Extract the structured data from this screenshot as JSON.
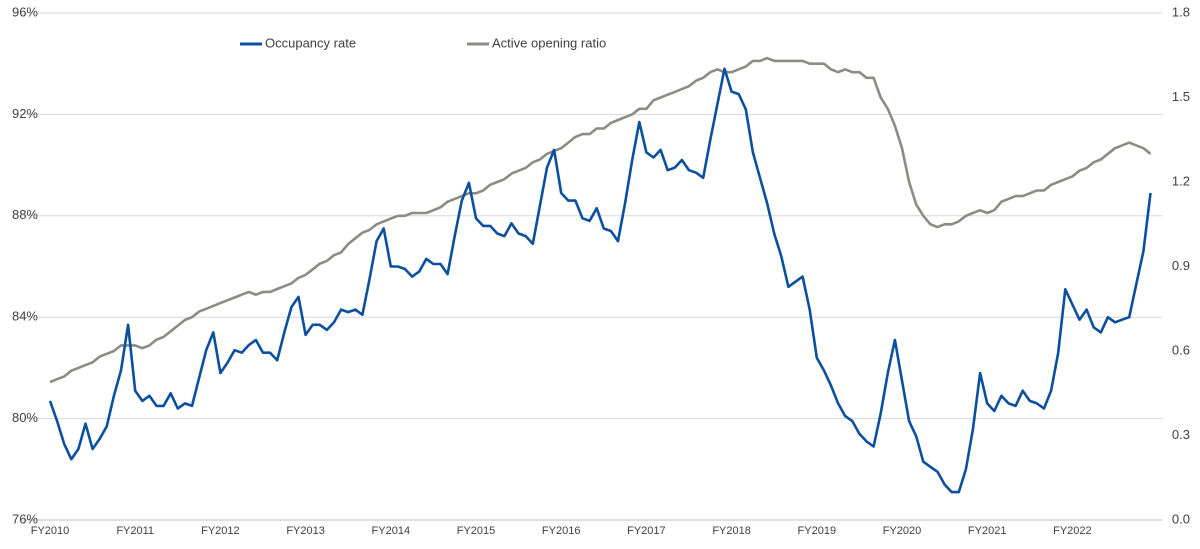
{
  "chart_data": {
    "type": "line",
    "categories": [
      "FY2010",
      null,
      null,
      null,
      null,
      null,
      null,
      null,
      null,
      null,
      null,
      null,
      "FY2011",
      null,
      null,
      null,
      null,
      null,
      null,
      null,
      null,
      null,
      null,
      null,
      "FY2012",
      null,
      null,
      null,
      null,
      null,
      null,
      null,
      null,
      null,
      null,
      null,
      "FY2013",
      null,
      null,
      null,
      null,
      null,
      null,
      null,
      null,
      null,
      null,
      null,
      "FY2014",
      null,
      null,
      null,
      null,
      null,
      null,
      null,
      null,
      null,
      null,
      null,
      "FY2015",
      null,
      null,
      null,
      null,
      null,
      null,
      null,
      null,
      null,
      null,
      null,
      "FY2016",
      null,
      null,
      null,
      null,
      null,
      null,
      null,
      null,
      null,
      null,
      null,
      "FY2017",
      null,
      null,
      null,
      null,
      null,
      null,
      null,
      null,
      null,
      null,
      null,
      "FY2018",
      null,
      null,
      null,
      null,
      null,
      null,
      null,
      null,
      null,
      null,
      null,
      "FY2019",
      null,
      null,
      null,
      null,
      null,
      null,
      null,
      null,
      null,
      null,
      null,
      "FY2020",
      null,
      null,
      null,
      null,
      null,
      null,
      null,
      null,
      null,
      null,
      null,
      "FY2021",
      null,
      null,
      null,
      null,
      null,
      null,
      null,
      null,
      null,
      null,
      null,
      "FY2022",
      null,
      null,
      null,
      null,
      null,
      null,
      null,
      null,
      null,
      null,
      null
    ],
    "series": [
      {
        "name": "Occupancy rate",
        "color": "#0b4f9e",
        "values": [
          80.7,
          79.9,
          79.0,
          78.4,
          78.8,
          79.8,
          78.8,
          79.2,
          79.7,
          80.9,
          81.9,
          83.7,
          81.1,
          80.7,
          80.9,
          80.5,
          80.5,
          81.0,
          80.4,
          80.6,
          80.5,
          81.6,
          82.7,
          83.4,
          81.8,
          82.2,
          82.7,
          82.6,
          82.9,
          83.1,
          82.6,
          82.6,
          82.3,
          83.4,
          84.4,
          84.8,
          83.3,
          83.7,
          83.7,
          83.5,
          83.8,
          84.3,
          84.2,
          84.3,
          84.1,
          85.5,
          87.0,
          87.5,
          86.0,
          86.0,
          85.9,
          85.6,
          85.8,
          86.3,
          86.1,
          86.1,
          85.7,
          87.2,
          88.6,
          89.3,
          87.9,
          87.6,
          87.6,
          87.3,
          87.2,
          87.7,
          87.3,
          87.2,
          86.9,
          88.4,
          89.9,
          90.6,
          88.9,
          88.6,
          88.6,
          87.9,
          87.8,
          88.3,
          87.5,
          87.4,
          87.0,
          88.5,
          90.2,
          91.7,
          90.5,
          90.3,
          90.6,
          89.8,
          89.9,
          90.2,
          89.8,
          89.7,
          89.5,
          91.0,
          92.4,
          93.8,
          92.9,
          92.8,
          92.2,
          90.5,
          89.5,
          88.5,
          87.3,
          86.4,
          85.2,
          85.4,
          85.6,
          84.3,
          82.4,
          81.9,
          81.3,
          80.6,
          80.1,
          79.9,
          79.4,
          79.1,
          78.9,
          80.2,
          81.8,
          83.1,
          81.5,
          79.9,
          79.3,
          78.3,
          78.1,
          77.9,
          77.4,
          77.1,
          77.1,
          78.0,
          79.6,
          81.8,
          80.6,
          80.3,
          80.9,
          80.6,
          80.5,
          81.1,
          80.7,
          80.6,
          80.4,
          81.1,
          82.6,
          85.1,
          84.5,
          83.9,
          84.3,
          83.6,
          83.4,
          84.0,
          83.8,
          83.9,
          84.0,
          85.3,
          86.6,
          88.9
        ]
      },
      {
        "name": "Active opening ratio",
        "color": "#8c8c84",
        "axis": "y2",
        "values": [
          0.49,
          0.5,
          0.51,
          0.53,
          0.54,
          0.55,
          0.56,
          0.58,
          0.59,
          0.6,
          0.62,
          0.62,
          0.62,
          0.61,
          0.62,
          0.64,
          0.65,
          0.67,
          0.69,
          0.71,
          0.72,
          0.74,
          0.75,
          0.76,
          0.77,
          0.78,
          0.79,
          0.8,
          0.81,
          0.8,
          0.81,
          0.81,
          0.82,
          0.83,
          0.84,
          0.86,
          0.87,
          0.89,
          0.91,
          0.92,
          0.94,
          0.95,
          0.98,
          1.0,
          1.02,
          1.03,
          1.05,
          1.06,
          1.07,
          1.08,
          1.08,
          1.09,
          1.09,
          1.09,
          1.1,
          1.11,
          1.13,
          1.14,
          1.15,
          1.16,
          1.16,
          1.17,
          1.19,
          1.2,
          1.21,
          1.23,
          1.24,
          1.25,
          1.27,
          1.28,
          1.3,
          1.31,
          1.32,
          1.34,
          1.36,
          1.37,
          1.37,
          1.39,
          1.39,
          1.41,
          1.42,
          1.43,
          1.44,
          1.46,
          1.46,
          1.49,
          1.5,
          1.51,
          1.52,
          1.53,
          1.54,
          1.56,
          1.57,
          1.59,
          1.6,
          1.59,
          1.59,
          1.6,
          1.61,
          1.63,
          1.63,
          1.64,
          1.63,
          1.63,
          1.63,
          1.63,
          1.63,
          1.62,
          1.62,
          1.62,
          1.6,
          1.59,
          1.6,
          1.59,
          1.59,
          1.57,
          1.57,
          1.5,
          1.46,
          1.4,
          1.32,
          1.2,
          1.12,
          1.08,
          1.05,
          1.04,
          1.05,
          1.05,
          1.06,
          1.08,
          1.09,
          1.1,
          1.09,
          1.1,
          1.13,
          1.14,
          1.15,
          1.15,
          1.16,
          1.17,
          1.17,
          1.19,
          1.2,
          1.21,
          1.22,
          1.24,
          1.25,
          1.27,
          1.28,
          1.3,
          1.32,
          1.33,
          1.34,
          1.33,
          1.32,
          1.3
        ]
      }
    ],
    "ylim": [
      76,
      96
    ],
    "yticks": [
      {
        "value": 76,
        "label": "76%"
      },
      {
        "value": 80,
        "label": "80%"
      },
      {
        "value": 84,
        "label": "84%"
      },
      {
        "value": 88,
        "label": "88%"
      },
      {
        "value": 92,
        "label": "92%"
      },
      {
        "value": 96,
        "label": "96%"
      }
    ],
    "y2lim": [
      0,
      1.8
    ],
    "y2ticks": [
      {
        "value": 0,
        "label": "0.0"
      },
      0.3,
      0.6,
      0.9,
      1.2,
      1.5,
      1.8
    ],
    "grid": true,
    "legend": "top"
  }
}
